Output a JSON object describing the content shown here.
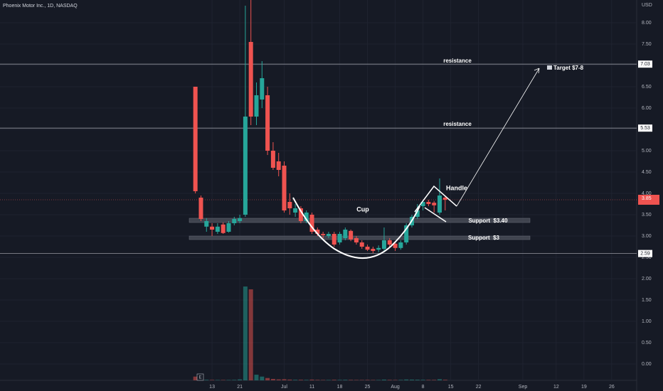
{
  "chart_data": {
    "type": "candlestick",
    "title": "Phoenix Motor Inc., 1D, NASDAQ",
    "currency": "USD",
    "up_color": "#26a69a",
    "down_color": "#ef5350",
    "grid": true,
    "xlim": [
      -35.2,
      79.5
    ],
    "xticks": [
      {
        "value": 3,
        "label": "13"
      },
      {
        "value": 8,
        "label": "21"
      },
      {
        "value": 16,
        "label": "Jul"
      },
      {
        "value": 21,
        "label": "11"
      },
      {
        "value": 26,
        "label": "18"
      },
      {
        "value": 31,
        "label": "25"
      },
      {
        "value": 36,
        "label": "Aug"
      },
      {
        "value": 41,
        "label": "8"
      },
      {
        "value": 46,
        "label": "15"
      },
      {
        "value": 51,
        "label": "22"
      },
      {
        "value": 59,
        "label": "Sep"
      },
      {
        "value": 65,
        "label": "12"
      },
      {
        "value": 70,
        "label": "19"
      },
      {
        "value": 75,
        "label": "26"
      }
    ],
    "ylim": [
      -0.383,
      8.533
    ],
    "yticks": [
      {
        "value": 0,
        "label": "0.00"
      },
      {
        "value": 0.5,
        "label": "0.50"
      },
      {
        "value": 1,
        "label": "1.00"
      },
      {
        "value": 1.5,
        "label": "1.50"
      },
      {
        "value": 2,
        "label": "2.00"
      },
      {
        "value": 2.5,
        "label": "2.50"
      },
      {
        "value": 3,
        "label": "3.00"
      },
      {
        "value": 3.5,
        "label": "3.50"
      },
      {
        "value": 4,
        "label": "4.00"
      },
      {
        "value": 4.5,
        "label": "4.50"
      },
      {
        "value": 5,
        "label": "5.00"
      },
      {
        "value": 5.5,
        "label": "5.50"
      },
      {
        "value": 6,
        "label": "6.00"
      },
      {
        "value": 6.5,
        "label": "6.50"
      },
      {
        "value": 7,
        "label": "7.00"
      },
      {
        "value": 7.5,
        "label": "7.50"
      },
      {
        "value": 8,
        "label": "8.00"
      }
    ],
    "open": [
      6.5,
      3.9,
      3.22,
      3.22,
      3.1,
      3.27,
      3.1,
      3.3,
      3.35,
      3.5,
      7.55,
      5.8,
      6.2,
      6.3,
      5.0,
      4.75,
      4.65,
      3.8,
      3.55,
      3.65,
      3.35,
      3.5,
      3.15,
      3.05,
      3.0,
      3.05,
      2.85,
      2.95,
      3.12,
      2.95,
      2.85,
      2.75,
      2.7,
      2.68,
      2.7,
      2.9,
      2.82,
      2.72,
      2.85,
      3.25,
      3.45,
      3.7,
      3.8,
      3.78,
      3.55,
      3.9
    ],
    "high": [
      6.5,
      3.95,
      3.42,
      3.3,
      3.3,
      3.32,
      3.35,
      3.45,
      3.5,
      8.4,
      8.55,
      6.6,
      7.1,
      6.5,
      5.2,
      4.95,
      4.75,
      4.0,
      3.75,
      3.7,
      3.6,
      3.55,
      3.2,
      3.1,
      3.1,
      3.1,
      3.1,
      3.2,
      3.15,
      3.0,
      2.9,
      2.8,
      2.75,
      2.78,
      3.2,
      2.95,
      2.85,
      2.9,
      3.3,
      3.5,
      3.75,
      3.85,
      3.85,
      3.82,
      4.35,
      3.95
    ],
    "low": [
      4.0,
      3.35,
      3.1,
      3.0,
      3.05,
      3.05,
      3.08,
      3.25,
      3.3,
      3.45,
      5.6,
      5.6,
      6.0,
      4.9,
      4.55,
      4.4,
      3.55,
      3.5,
      3.45,
      3.3,
      3.3,
      3.05,
      3.0,
      2.95,
      2.95,
      2.75,
      2.8,
      2.9,
      2.88,
      2.8,
      2.7,
      2.65,
      2.6,
      2.62,
      2.65,
      2.75,
      2.65,
      2.68,
      2.8,
      3.2,
      3.4,
      3.6,
      3.7,
      3.55,
      3.5,
      3.6
    ],
    "close": [
      4.05,
      3.4,
      3.35,
      3.15,
      3.22,
      3.07,
      3.3,
      3.4,
      3.42,
      5.8,
      5.8,
      6.3,
      6.7,
      5.0,
      4.6,
      4.55,
      3.6,
      3.65,
      3.65,
      3.35,
      3.55,
      3.1,
      3.05,
      3.02,
      3.05,
      2.8,
      3.05,
      3.15,
      2.92,
      2.85,
      2.75,
      2.68,
      2.65,
      2.72,
      2.9,
      2.8,
      2.72,
      2.85,
      3.25,
      3.45,
      3.6,
      3.8,
      3.75,
      3.72,
      3.95,
      3.85
    ],
    "volume": [
      4,
      1.5,
      0.6,
      0.5,
      0.4,
      0.4,
      0.4,
      0.5,
      1,
      100,
      97,
      6,
      4,
      2.5,
      1.5,
      1,
      1.2,
      0.8,
      0.6,
      0.6,
      0.5,
      0.8,
      0.5,
      0.4,
      0.4,
      0.6,
      0.5,
      0.6,
      0.5,
      0.4,
      0.4,
      0.5,
      0.4,
      0.4,
      0.8,
      0.5,
      0.4,
      0.5,
      0.9,
      0.8,
      0.7,
      0.6,
      0.5,
      0.5,
      1.2,
      0.6
    ],
    "levels": [
      7.03,
      5.53,
      2.59
    ],
    "last_price": 3.85,
    "earnings_marker": "E",
    "annotations": [
      "resistance",
      "resistance",
      "Cup",
      "Handle",
      "Support  $3.40",
      "Support  $3",
      "Target $7-8"
    ]
  }
}
